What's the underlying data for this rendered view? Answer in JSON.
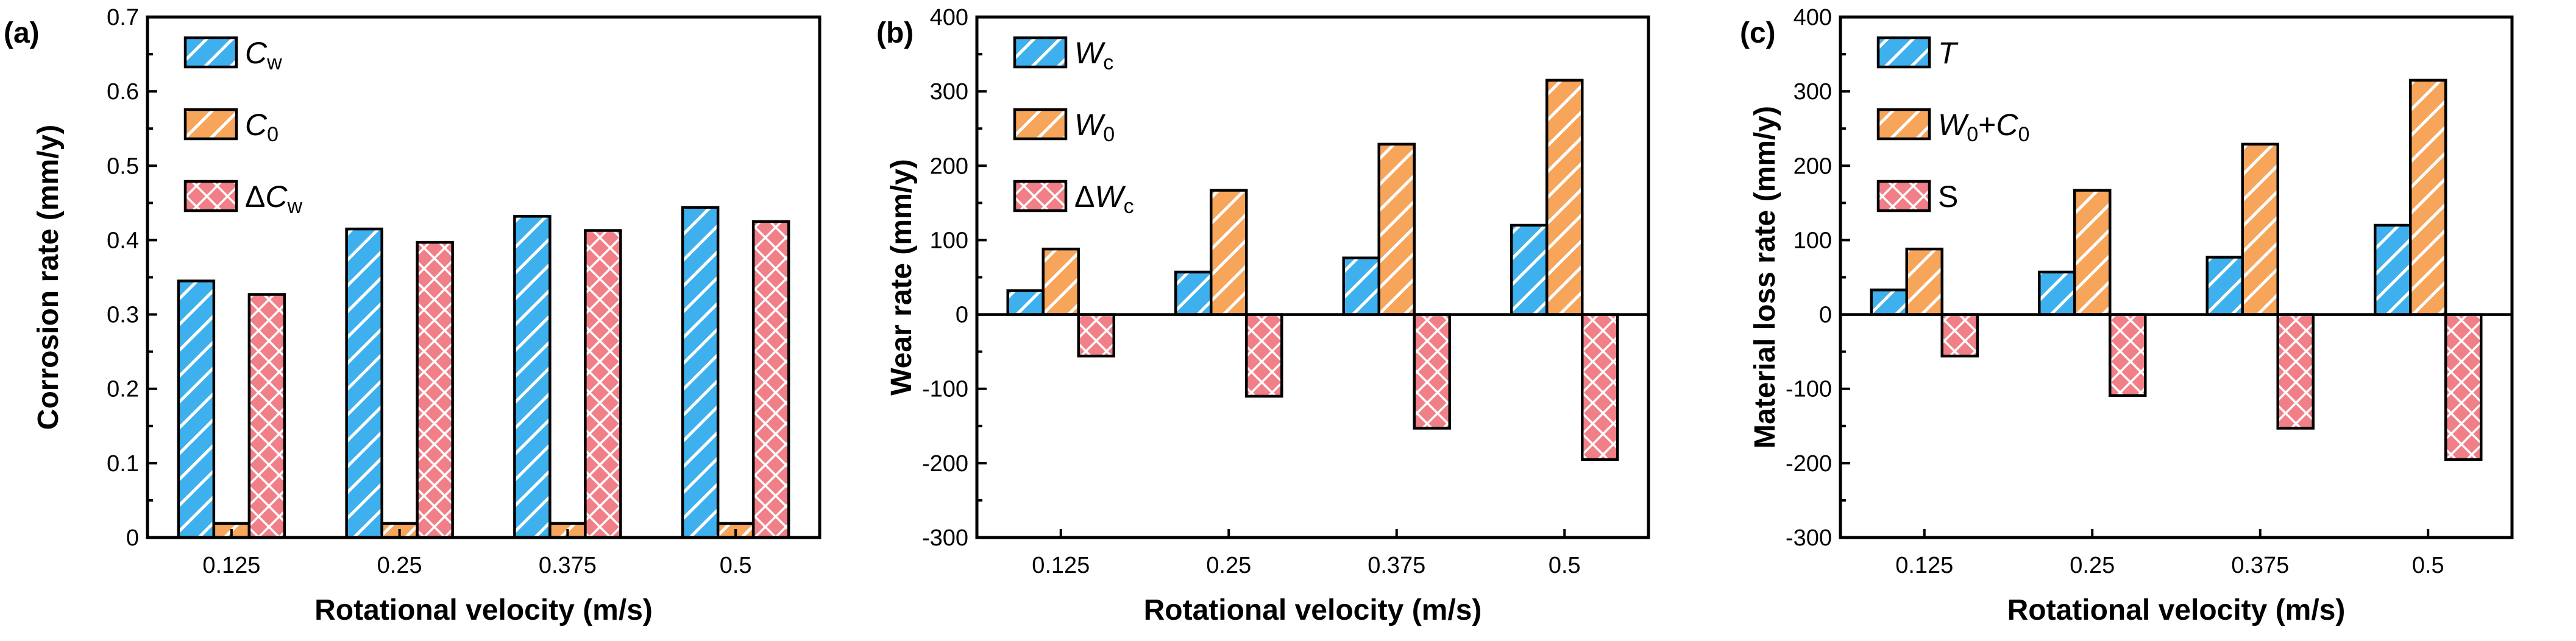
{
  "colors": {
    "blue": "#3fb0ee",
    "orange": "#f6a55a",
    "red": "#f07f88",
    "stroke": "#000000"
  },
  "chart_data": [
    {
      "type": "bar",
      "panel_label": "(a)",
      "categories": [
        "0.125",
        "0.25",
        "0.375",
        "0.5"
      ],
      "xlabel": "Rotational velocity (m/s)",
      "ylabel": "Corrosion rate (mm/y)",
      "ylim": [
        0,
        0.7
      ],
      "yticks": [
        0,
        0.1,
        0.2,
        0.3,
        0.4,
        0.5,
        0.6,
        0.7
      ],
      "ytick_labels": [
        "0",
        "0.1",
        "0.2",
        "0.3",
        "0.4",
        "0.5",
        "0.6",
        "0.7"
      ],
      "legend_position": "top-left",
      "series": [
        {
          "name": "Cw",
          "legend": [
            {
              "t": "C",
              "i": true
            },
            {
              "t": "w",
              "sub": true
            }
          ],
          "color": "blue",
          "pattern": "diag",
          "values": [
            0.345,
            0.415,
            0.432,
            0.444
          ]
        },
        {
          "name": "C0",
          "legend": [
            {
              "t": "C",
              "i": true
            },
            {
              "t": "0",
              "sub": true
            }
          ],
          "color": "orange",
          "pattern": "diag",
          "values": [
            0.019,
            0.019,
            0.019,
            0.019
          ]
        },
        {
          "name": "ΔCw",
          "legend": [
            {
              "t": "Δ"
            },
            {
              "t": "C",
              "i": true
            },
            {
              "t": "w",
              "sub": true
            }
          ],
          "color": "red",
          "pattern": "cross",
          "values": [
            0.327,
            0.397,
            0.413,
            0.425
          ]
        }
      ]
    },
    {
      "type": "bar",
      "panel_label": "(b)",
      "categories": [
        "0.125",
        "0.25",
        "0.375",
        "0.5"
      ],
      "xlabel": "Rotational velocity (m/s)",
      "ylabel": "Wear rate (mm/y)",
      "ylim": [
        -300,
        400
      ],
      "yticks": [
        -300,
        -200,
        -100,
        0,
        100,
        200,
        300,
        400
      ],
      "ytick_labels": [
        "-300",
        "-200",
        "-100",
        "0",
        "100",
        "200",
        "300",
        "400"
      ],
      "legend_position": "top-left",
      "series": [
        {
          "name": "Wc",
          "legend": [
            {
              "t": "W",
              "i": true
            },
            {
              "t": "c",
              "sub": true
            }
          ],
          "color": "blue",
          "pattern": "diag",
          "values": [
            32,
            57,
            76,
            120
          ]
        },
        {
          "name": "W0",
          "legend": [
            {
              "t": "W",
              "i": true
            },
            {
              "t": "0",
              "sub": true
            }
          ],
          "color": "orange",
          "pattern": "diag",
          "values": [
            88,
            167,
            229,
            315
          ]
        },
        {
          "name": "ΔWc",
          "legend": [
            {
              "t": "Δ"
            },
            {
              "t": "W",
              "i": true
            },
            {
              "t": "c",
              "sub": true
            }
          ],
          "color": "red",
          "pattern": "cross",
          "values": [
            -56,
            -110,
            -153,
            -195
          ]
        }
      ]
    },
    {
      "type": "bar",
      "panel_label": "(c)",
      "categories": [
        "0.125",
        "0.25",
        "0.375",
        "0.5"
      ],
      "xlabel": "Rotational velocity (m/s)",
      "ylabel": "Material loss rate (mm/y)",
      "ylim": [
        -300,
        400
      ],
      "yticks": [
        -300,
        -200,
        -100,
        0,
        100,
        200,
        300,
        400
      ],
      "ytick_labels": [
        "-300",
        "-200",
        "-100",
        "0",
        "100",
        "200",
        "300",
        "400"
      ],
      "legend_position": "top-left",
      "series": [
        {
          "name": "T",
          "legend": [
            {
              "t": "T",
              "i": true
            }
          ],
          "color": "blue",
          "pattern": "diag",
          "values": [
            33,
            57,
            77,
            120
          ]
        },
        {
          "name": "W0+C0",
          "legend": [
            {
              "t": "W",
              "i": true
            },
            {
              "t": "0",
              "sub": true
            },
            {
              "t": "+"
            },
            {
              "t": "C",
              "i": true
            },
            {
              "t": "0",
              "sub": true
            }
          ],
          "color": "orange",
          "pattern": "diag",
          "values": [
            88,
            167,
            229,
            315
          ]
        },
        {
          "name": "S",
          "legend": [
            {
              "t": "S"
            }
          ],
          "color": "red",
          "pattern": "cross",
          "values": [
            -56,
            -109,
            -153,
            -195
          ]
        }
      ]
    }
  ]
}
